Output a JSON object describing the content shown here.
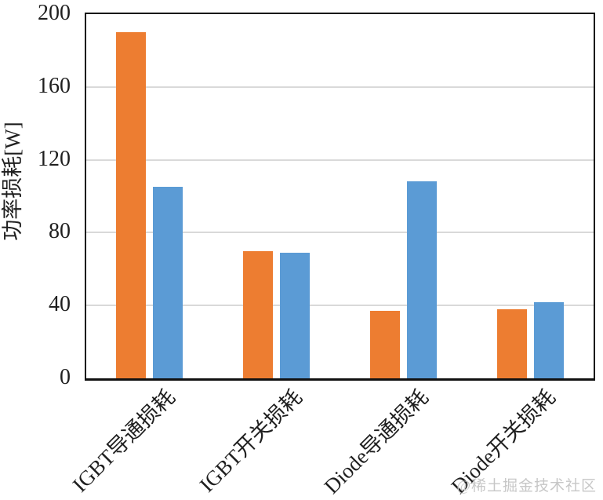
{
  "chart_data": {
    "type": "bar",
    "categories": [
      "IGBT导通损耗",
      "IGBT开关损耗",
      "Diode导通损耗",
      "Diode开关损耗"
    ],
    "series": [
      {
        "name": "orange",
        "color": "#ED7D31",
        "values": [
          190,
          70,
          37,
          38
        ]
      },
      {
        "name": "blue",
        "color": "#5B9BD5",
        "values": [
          105,
          69,
          108,
          42
        ]
      }
    ],
    "title": "",
    "xlabel": "",
    "ylabel": "功率损耗[W]",
    "ylim": [
      0,
      200
    ],
    "yticks": [
      0,
      40,
      80,
      120,
      160,
      200
    ],
    "grid": true,
    "legend": false,
    "gridline_color": "#d9d9d9",
    "axis_color": "#111111"
  },
  "watermark": {
    "text": "@稀土掘金技术社区"
  }
}
